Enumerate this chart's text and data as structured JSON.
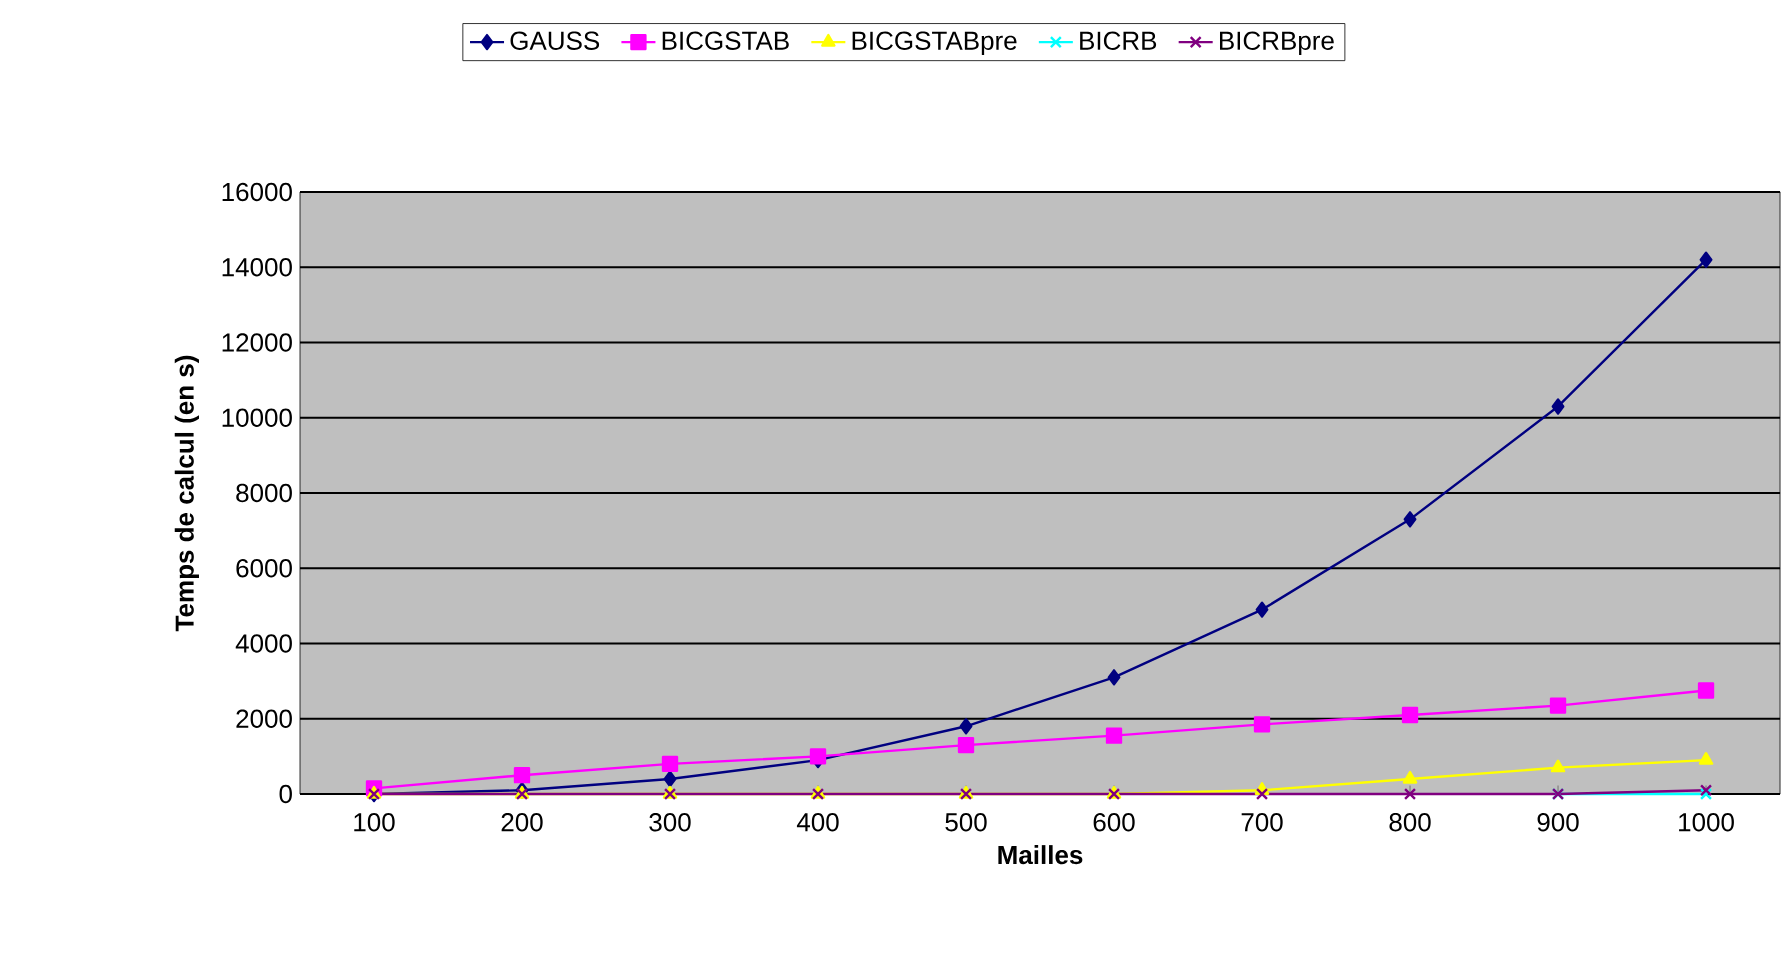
{
  "chart_data": {
    "type": "line",
    "xlabel": "Mailles",
    "ylabel": "Temps de calcul (en s)",
    "categories": [
      "100",
      "200",
      "300",
      "400",
      "500",
      "600",
      "700",
      "800",
      "900",
      "1000"
    ],
    "series": [
      {
        "name": "GAUSS",
        "color": "#000080",
        "marker": "diamond",
        "values": [
          0,
          100,
          400,
          900,
          1800,
          3100,
          4900,
          7300,
          10300,
          14200
        ]
      },
      {
        "name": "BICGSTAB",
        "color": "#ff00ff",
        "marker": "square",
        "values": [
          150,
          500,
          800,
          1000,
          1300,
          1550,
          1850,
          2100,
          2350,
          2750
        ]
      },
      {
        "name": "BICGSTABpre",
        "color": "#ffff00",
        "marker": "triangle",
        "values": [
          0,
          0,
          0,
          0,
          0,
          0,
          100,
          400,
          700,
          900
        ]
      },
      {
        "name": "BICRB",
        "color": "#00ffff",
        "marker": "cross",
        "values": [
          null,
          null,
          null,
          null,
          null,
          null,
          null,
          null,
          0,
          0
        ]
      },
      {
        "name": "BICRBpre",
        "color": "#800080",
        "marker": "cross",
        "values": [
          0,
          0,
          0,
          0,
          0,
          0,
          0,
          0,
          0,
          100
        ]
      }
    ],
    "ylim": [
      0,
      16000
    ],
    "yticks": [
      0,
      2000,
      4000,
      6000,
      8000,
      10000,
      12000,
      14000,
      16000
    ],
    "grid": "y",
    "legend": "top",
    "line_style": "solid"
  }
}
